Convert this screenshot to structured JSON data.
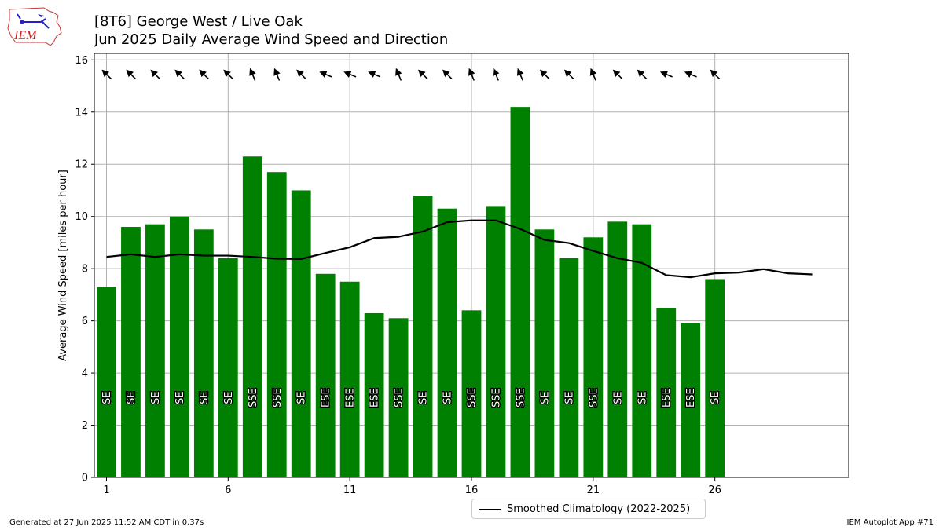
{
  "logo": {
    "text": "IEM"
  },
  "header": {
    "title_line1": "[8T6] George West / Live Oak",
    "title_line2": "Jun 2025 Daily Average Wind Speed and Direction"
  },
  "footer": {
    "left": "Generated at 27 Jun 2025 11:52 AM CDT in 0.37s",
    "right": "IEM Autoplot App #71"
  },
  "colors": {
    "bar": "#008000",
    "climo": "#000000",
    "grid": "#b0b0b0"
  },
  "chart_data": {
    "type": "bar",
    "title": "[8T6] George West / Live Oak",
    "subtitle": "Jun 2025 Daily Average Wind Speed and Direction",
    "xlabel": "",
    "ylabel": "Average Wind Speed [miles per hour]",
    "xlim": [
      0.5,
      31.5
    ],
    "ylim": [
      0,
      16.25
    ],
    "x_ticks": [
      1,
      6,
      11,
      16,
      21,
      26
    ],
    "y_ticks": [
      0,
      2,
      4,
      6,
      8,
      10,
      12,
      14,
      16
    ],
    "grid": true,
    "legend_position": "bottom-center",
    "series": [
      {
        "type": "bar",
        "days": [
          1,
          2,
          3,
          4,
          5,
          6,
          7,
          8,
          9,
          10,
          11,
          12,
          13,
          14,
          15,
          16,
          17,
          18,
          19,
          20,
          21,
          22,
          23,
          24,
          25,
          26
        ],
        "values": [
          7.3,
          9.6,
          9.7,
          10.0,
          9.5,
          8.4,
          12.3,
          11.7,
          11.0,
          7.8,
          7.5,
          6.3,
          6.1,
          10.8,
          10.3,
          6.4,
          10.4,
          14.2,
          9.5,
          8.4,
          9.2,
          9.8,
          9.7,
          6.5,
          5.9,
          7.6
        ],
        "direction_labels": [
          "SE",
          "SE",
          "SE",
          "SE",
          "SE",
          "SE",
          "SSE",
          "SSE",
          "SE",
          "ESE",
          "ESE",
          "ESE",
          "SSE",
          "SE",
          "SE",
          "SSE",
          "SSE",
          "SSE",
          "SE",
          "SE",
          "SSE",
          "SE",
          "SE",
          "ESE",
          "ESE",
          "SE"
        ],
        "direction_degrees": [
          135,
          135,
          135,
          135,
          135,
          135,
          157.5,
          157.5,
          135,
          112.5,
          112.5,
          112.5,
          157.5,
          135,
          135,
          157.5,
          157.5,
          157.5,
          135,
          135,
          157.5,
          135,
          135,
          112.5,
          112.5,
          135
        ]
      },
      {
        "type": "line",
        "name": "Smoothed Climatology (2022-2025)",
        "days": [
          1,
          2,
          3,
          4,
          5,
          6,
          7,
          8,
          9,
          10,
          11,
          12,
          13,
          14,
          15,
          16,
          17,
          18,
          19,
          20,
          21,
          22,
          23,
          24,
          25,
          26,
          27,
          28,
          29,
          30
        ],
        "values": [
          8.45,
          8.55,
          8.45,
          8.55,
          8.5,
          8.5,
          8.45,
          8.38,
          8.37,
          8.6,
          8.82,
          9.17,
          9.22,
          9.42,
          9.78,
          9.85,
          9.85,
          9.52,
          9.1,
          8.98,
          8.68,
          8.4,
          8.22,
          7.75,
          7.67,
          7.82,
          7.85,
          7.98,
          7.82,
          7.78
        ]
      }
    ]
  }
}
